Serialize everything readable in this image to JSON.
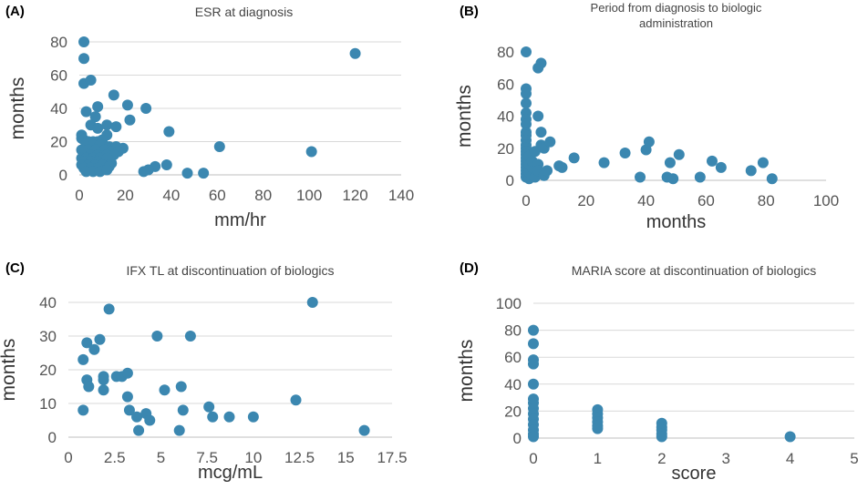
{
  "figure": {
    "panel_labels": [
      "(A)",
      "(B)",
      "(C)",
      "(D)"
    ]
  },
  "chart_data": [
    {
      "type": "scatter",
      "panel": "(A)",
      "title": "ESR at diagnosis",
      "title_lines": [
        "ESR at diagnosis"
      ],
      "xlabel": "mm/hr",
      "ylabel": "months",
      "xlim": [
        0,
        140
      ],
      "ylim": [
        0,
        80
      ],
      "xticks": [
        0,
        20,
        40,
        60,
        80,
        100,
        120,
        140
      ],
      "xtick_labels": [
        "0",
        "20",
        "40",
        "60",
        "80",
        "100",
        "120",
        "140"
      ],
      "yticks": [
        0,
        20,
        40,
        60,
        80
      ],
      "ytick_labels": [
        "0",
        "20",
        "40",
        "60",
        "80"
      ],
      "grid": "horizontal",
      "color": "#3b87b0",
      "points": [
        [
          2,
          80
        ],
        [
          2,
          70
        ],
        [
          2,
          55
        ],
        [
          5,
          57
        ],
        [
          3,
          38
        ],
        [
          15,
          48
        ],
        [
          21,
          42
        ],
        [
          29,
          40
        ],
        [
          22,
          33
        ],
        [
          8,
          41
        ],
        [
          7,
          35
        ],
        [
          5,
          30
        ],
        [
          12,
          30
        ],
        [
          16,
          29
        ],
        [
          8,
          28
        ],
        [
          12,
          24
        ],
        [
          1,
          24
        ],
        [
          1,
          22
        ],
        [
          2,
          21
        ],
        [
          4,
          20
        ],
        [
          6,
          20
        ],
        [
          8,
          20
        ],
        [
          10,
          21
        ],
        [
          3,
          19
        ],
        [
          6,
          18
        ],
        [
          9,
          18
        ],
        [
          13,
          17
        ],
        [
          16,
          17
        ],
        [
          19,
          16
        ],
        [
          1,
          15
        ],
        [
          4,
          15
        ],
        [
          7,
          15
        ],
        [
          11,
          15
        ],
        [
          14,
          14
        ],
        [
          17,
          14
        ],
        [
          2,
          13
        ],
        [
          5,
          12
        ],
        [
          8,
          12
        ],
        [
          12,
          12
        ],
        [
          15,
          12
        ],
        [
          1,
          10
        ],
        [
          3,
          10
        ],
        [
          6,
          10
        ],
        [
          9,
          10
        ],
        [
          12,
          10
        ],
        [
          2,
          8
        ],
        [
          5,
          8
        ],
        [
          8,
          8
        ],
        [
          11,
          7
        ],
        [
          14,
          7
        ],
        [
          1,
          6
        ],
        [
          4,
          6
        ],
        [
          7,
          6
        ],
        [
          10,
          6
        ],
        [
          13,
          5
        ],
        [
          2,
          4
        ],
        [
          5,
          4
        ],
        [
          8,
          4
        ],
        [
          3,
          2
        ],
        [
          6,
          2
        ],
        [
          9,
          2
        ],
        [
          12,
          3
        ],
        [
          39,
          26
        ],
        [
          61,
          17
        ],
        [
          101,
          14
        ],
        [
          120,
          73
        ],
        [
          38,
          6
        ],
        [
          33,
          5
        ],
        [
          30,
          3
        ],
        [
          28,
          2
        ],
        [
          47,
          1
        ],
        [
          54,
          1
        ]
      ]
    },
    {
      "type": "scatter",
      "panel": "(B)",
      "title": "Period from diagnosis to biologic administration",
      "title_lines": [
        "Period from diagnosis to biologic",
        "administration"
      ],
      "xlabel": "months",
      "ylabel": "months",
      "xlim": [
        0,
        100
      ],
      "ylim": [
        0,
        80
      ],
      "xticks": [
        0,
        20,
        40,
        60,
        80,
        100
      ],
      "xtick_labels": [
        "0",
        "20",
        "40",
        "60",
        "80",
        "100"
      ],
      "yticks": [
        0,
        20,
        40,
        60,
        80
      ],
      "ytick_labels": [
        "0",
        "20",
        "40",
        "60",
        "80"
      ],
      "grid": "none",
      "color": "#3b87b0",
      "points": [
        [
          0,
          80
        ],
        [
          0,
          57
        ],
        [
          0,
          54
        ],
        [
          0,
          48
        ],
        [
          0,
          42
        ],
        [
          0,
          38
        ],
        [
          0,
          35
        ],
        [
          0,
          30
        ],
        [
          0,
          28
        ],
        [
          0,
          25
        ],
        [
          0,
          22
        ],
        [
          0,
          20
        ],
        [
          0,
          18
        ],
        [
          0,
          16
        ],
        [
          0,
          14
        ],
        [
          0,
          12
        ],
        [
          0,
          10
        ],
        [
          0,
          8
        ],
        [
          0,
          6
        ],
        [
          0,
          4
        ],
        [
          0,
          2
        ],
        [
          1,
          1
        ],
        [
          1,
          5
        ],
        [
          1,
          10
        ],
        [
          1,
          15
        ],
        [
          2,
          3
        ],
        [
          2,
          8
        ],
        [
          2,
          12
        ],
        [
          3,
          18
        ],
        [
          3,
          2
        ],
        [
          4,
          40
        ],
        [
          5,
          73
        ],
        [
          4,
          70
        ],
        [
          5,
          30
        ],
        [
          5,
          22
        ],
        [
          6,
          20
        ],
        [
          4,
          10
        ],
        [
          4,
          6
        ],
        [
          6,
          3
        ],
        [
          7,
          6
        ],
        [
          8,
          24
        ],
        [
          11,
          9
        ],
        [
          12,
          8
        ],
        [
          16,
          14
        ],
        [
          26,
          11
        ],
        [
          33,
          17
        ],
        [
          38,
          2
        ],
        [
          40,
          19
        ],
        [
          41,
          24
        ],
        [
          47,
          2
        ],
        [
          48,
          11
        ],
        [
          51,
          16
        ],
        [
          49,
          1
        ],
        [
          58,
          2
        ],
        [
          62,
          12
        ],
        [
          65,
          8
        ],
        [
          75,
          6
        ],
        [
          79,
          11
        ],
        [
          82,
          1
        ]
      ]
    },
    {
      "type": "scatter",
      "panel": "(C)",
      "title": "IFX TL at discontinuation of biologics",
      "title_lines": [
        "IFX TL at discontinuation of biologics"
      ],
      "xlabel": "mcg/mL",
      "ylabel": "months",
      "xlim": [
        0,
        17.5
      ],
      "ylim": [
        0,
        40
      ],
      "xticks": [
        0,
        2.5,
        5,
        7.5,
        10,
        12.5,
        15,
        17.5
      ],
      "xtick_labels": [
        "0",
        "2.5",
        "5",
        "7.5",
        "10",
        "12.5",
        "15",
        "17.5"
      ],
      "yticks": [
        0,
        10,
        20,
        30,
        40
      ],
      "ytick_labels": [
        "0",
        "10",
        "20",
        "30",
        "40"
      ],
      "grid": "horizontal",
      "color": "#3b87b0",
      "points": [
        [
          0.8,
          23
        ],
        [
          1.0,
          28
        ],
        [
          0.8,
          8
        ],
        [
          1.0,
          17
        ],
        [
          1.1,
          15
        ],
        [
          1.4,
          26
        ],
        [
          1.7,
          29
        ],
        [
          1.9,
          18
        ],
        [
          1.9,
          17
        ],
        [
          1.9,
          14
        ],
        [
          2.2,
          38
        ],
        [
          2.6,
          18
        ],
        [
          2.9,
          18
        ],
        [
          3.2,
          19
        ],
        [
          3.2,
          12
        ],
        [
          3.3,
          8
        ],
        [
          3.7,
          6
        ],
        [
          3.8,
          2
        ],
        [
          4.2,
          7
        ],
        [
          4.4,
          5
        ],
        [
          4.8,
          30
        ],
        [
          5.2,
          14
        ],
        [
          6.1,
          15
        ],
        [
          6.2,
          8
        ],
        [
          6.6,
          30
        ],
        [
          6.0,
          2
        ],
        [
          7.6,
          9
        ],
        [
          7.8,
          6
        ],
        [
          8.7,
          6
        ],
        [
          10.0,
          6
        ],
        [
          12.3,
          11
        ],
        [
          13.2,
          40
        ],
        [
          16.0,
          2
        ]
      ]
    },
    {
      "type": "scatter",
      "panel": "(D)",
      "title": "MARIA score at discontinuation of biologics",
      "title_lines": [
        "MARIA score at discontinuation of biologics"
      ],
      "xlabel": "score",
      "ylabel": "months",
      "xlim": [
        0,
        5
      ],
      "ylim": [
        0,
        100
      ],
      "xticks": [
        0,
        1,
        2,
        3,
        4,
        5
      ],
      "xtick_labels": [
        "0",
        "1",
        "2",
        "3",
        "4",
        "5"
      ],
      "yticks": [
        0,
        20,
        40,
        60,
        80,
        100
      ],
      "ytick_labels": [
        "0",
        "20",
        "40",
        "60",
        "80",
        "100"
      ],
      "grid": "horizontal",
      "color": "#3b87b0",
      "points": [
        [
          0,
          80
        ],
        [
          0,
          70
        ],
        [
          0,
          58
        ],
        [
          0,
          55
        ],
        [
          0,
          40
        ],
        [
          0,
          29
        ],
        [
          0,
          26
        ],
        [
          0,
          22
        ],
        [
          0,
          18
        ],
        [
          0,
          14
        ],
        [
          0,
          10
        ],
        [
          0,
          6
        ],
        [
          0,
          3
        ],
        [
          0,
          1
        ],
        [
          1,
          21
        ],
        [
          1,
          18
        ],
        [
          1,
          15
        ],
        [
          1,
          12
        ],
        [
          1,
          9
        ],
        [
          1,
          7
        ],
        [
          2,
          11
        ],
        [
          2,
          8
        ],
        [
          2,
          6
        ],
        [
          2,
          3
        ],
        [
          2,
          1
        ],
        [
          4,
          1
        ]
      ]
    }
  ]
}
